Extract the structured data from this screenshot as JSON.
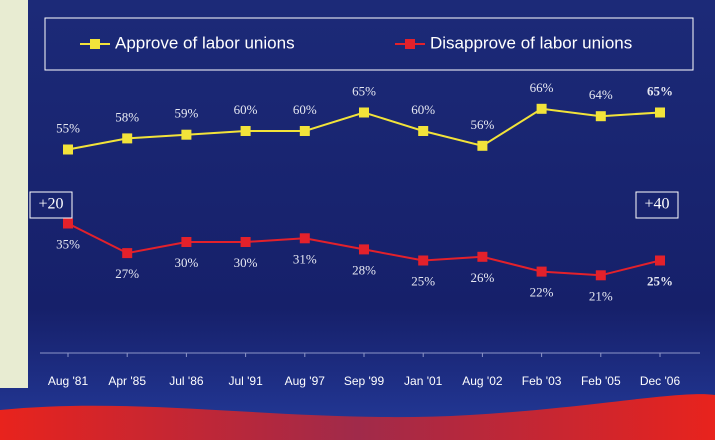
{
  "chart_data": {
    "type": "line",
    "categories": [
      "Aug '81",
      "Apr '85",
      "Jul '86",
      "Jul '91",
      "Aug '97",
      "Sep '99",
      "Jan '01",
      "Aug '02",
      "Feb '03",
      "Feb '05",
      "Dec '06"
    ],
    "series": [
      {
        "name": "Approve of labor unions",
        "color": "#f2e33a",
        "values": [
          55,
          58,
          59,
          60,
          60,
          65,
          60,
          56,
          66,
          64,
          65
        ],
        "value_labels": [
          "55%",
          "58%",
          "59%",
          "60%",
          "60%",
          "65%",
          "60%",
          "56%",
          "66%",
          "64%",
          "65%"
        ]
      },
      {
        "name": "Disapprove of labor unions",
        "color": "#e3212b",
        "values": [
          35,
          27,
          30,
          30,
          31,
          28,
          25,
          26,
          22,
          21,
          25
        ],
        "value_labels": [
          "35%",
          "27%",
          "30%",
          "30%",
          "31%",
          "28%",
          "25%",
          "26%",
          "22%",
          "21%",
          "25%"
        ]
      }
    ],
    "ylim": [
      0,
      70
    ],
    "annotations": [
      "+20",
      "+40"
    ]
  }
}
